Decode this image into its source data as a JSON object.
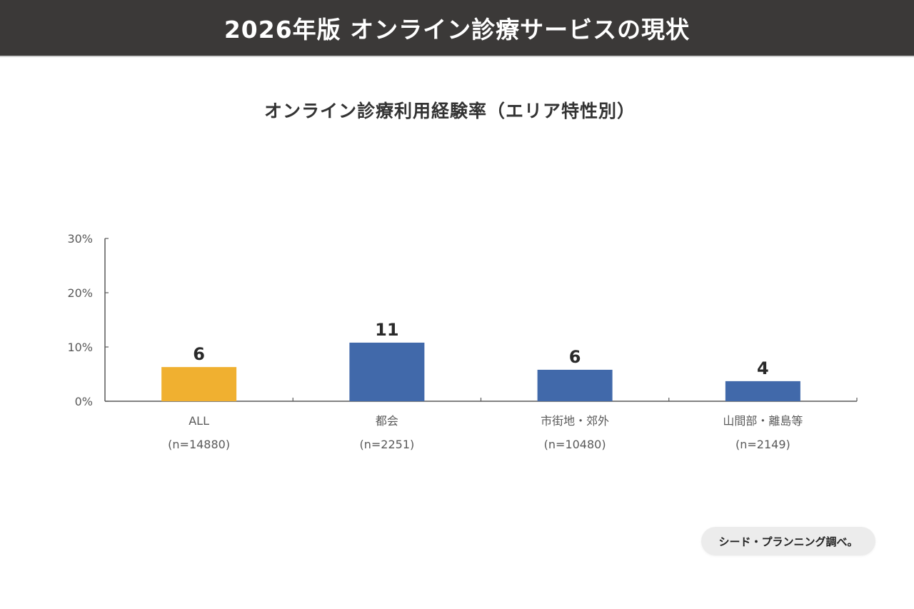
{
  "header": {
    "title": "2026年版 オンライン診療サービスの現状"
  },
  "colors": {
    "header_bg": "#3b3938",
    "highlight_bar": "#f0b030",
    "default_bar": "#4169aa",
    "axis": "#595959",
    "tick_text": "#595959",
    "data_label": "#2a2a2a"
  },
  "chart_data": {
    "type": "bar",
    "title": "オンライン診療利用経験率（エリア特性別）",
    "xlabel": "",
    "ylabel": "",
    "ylim": [
      0,
      30
    ],
    "yticks": [
      0,
      10,
      20,
      30
    ],
    "ytick_labels": [
      "0%",
      "10%",
      "20%",
      "30%"
    ],
    "grid": false,
    "legend": "none",
    "categories": [
      "ALL",
      "都会",
      "市街地・郊外",
      "山間部・離島等"
    ],
    "category_sublabels": [
      "(n=14880)",
      "(n=2251)",
      "(n=10480)",
      "(n=2149)"
    ],
    "values": [
      6.3,
      10.8,
      5.8,
      3.7
    ],
    "data_labels": [
      "6",
      "11",
      "6",
      "4"
    ],
    "highlight_index": 0,
    "unit": "%"
  },
  "source": {
    "label": "シード・プランニング調べ。"
  }
}
